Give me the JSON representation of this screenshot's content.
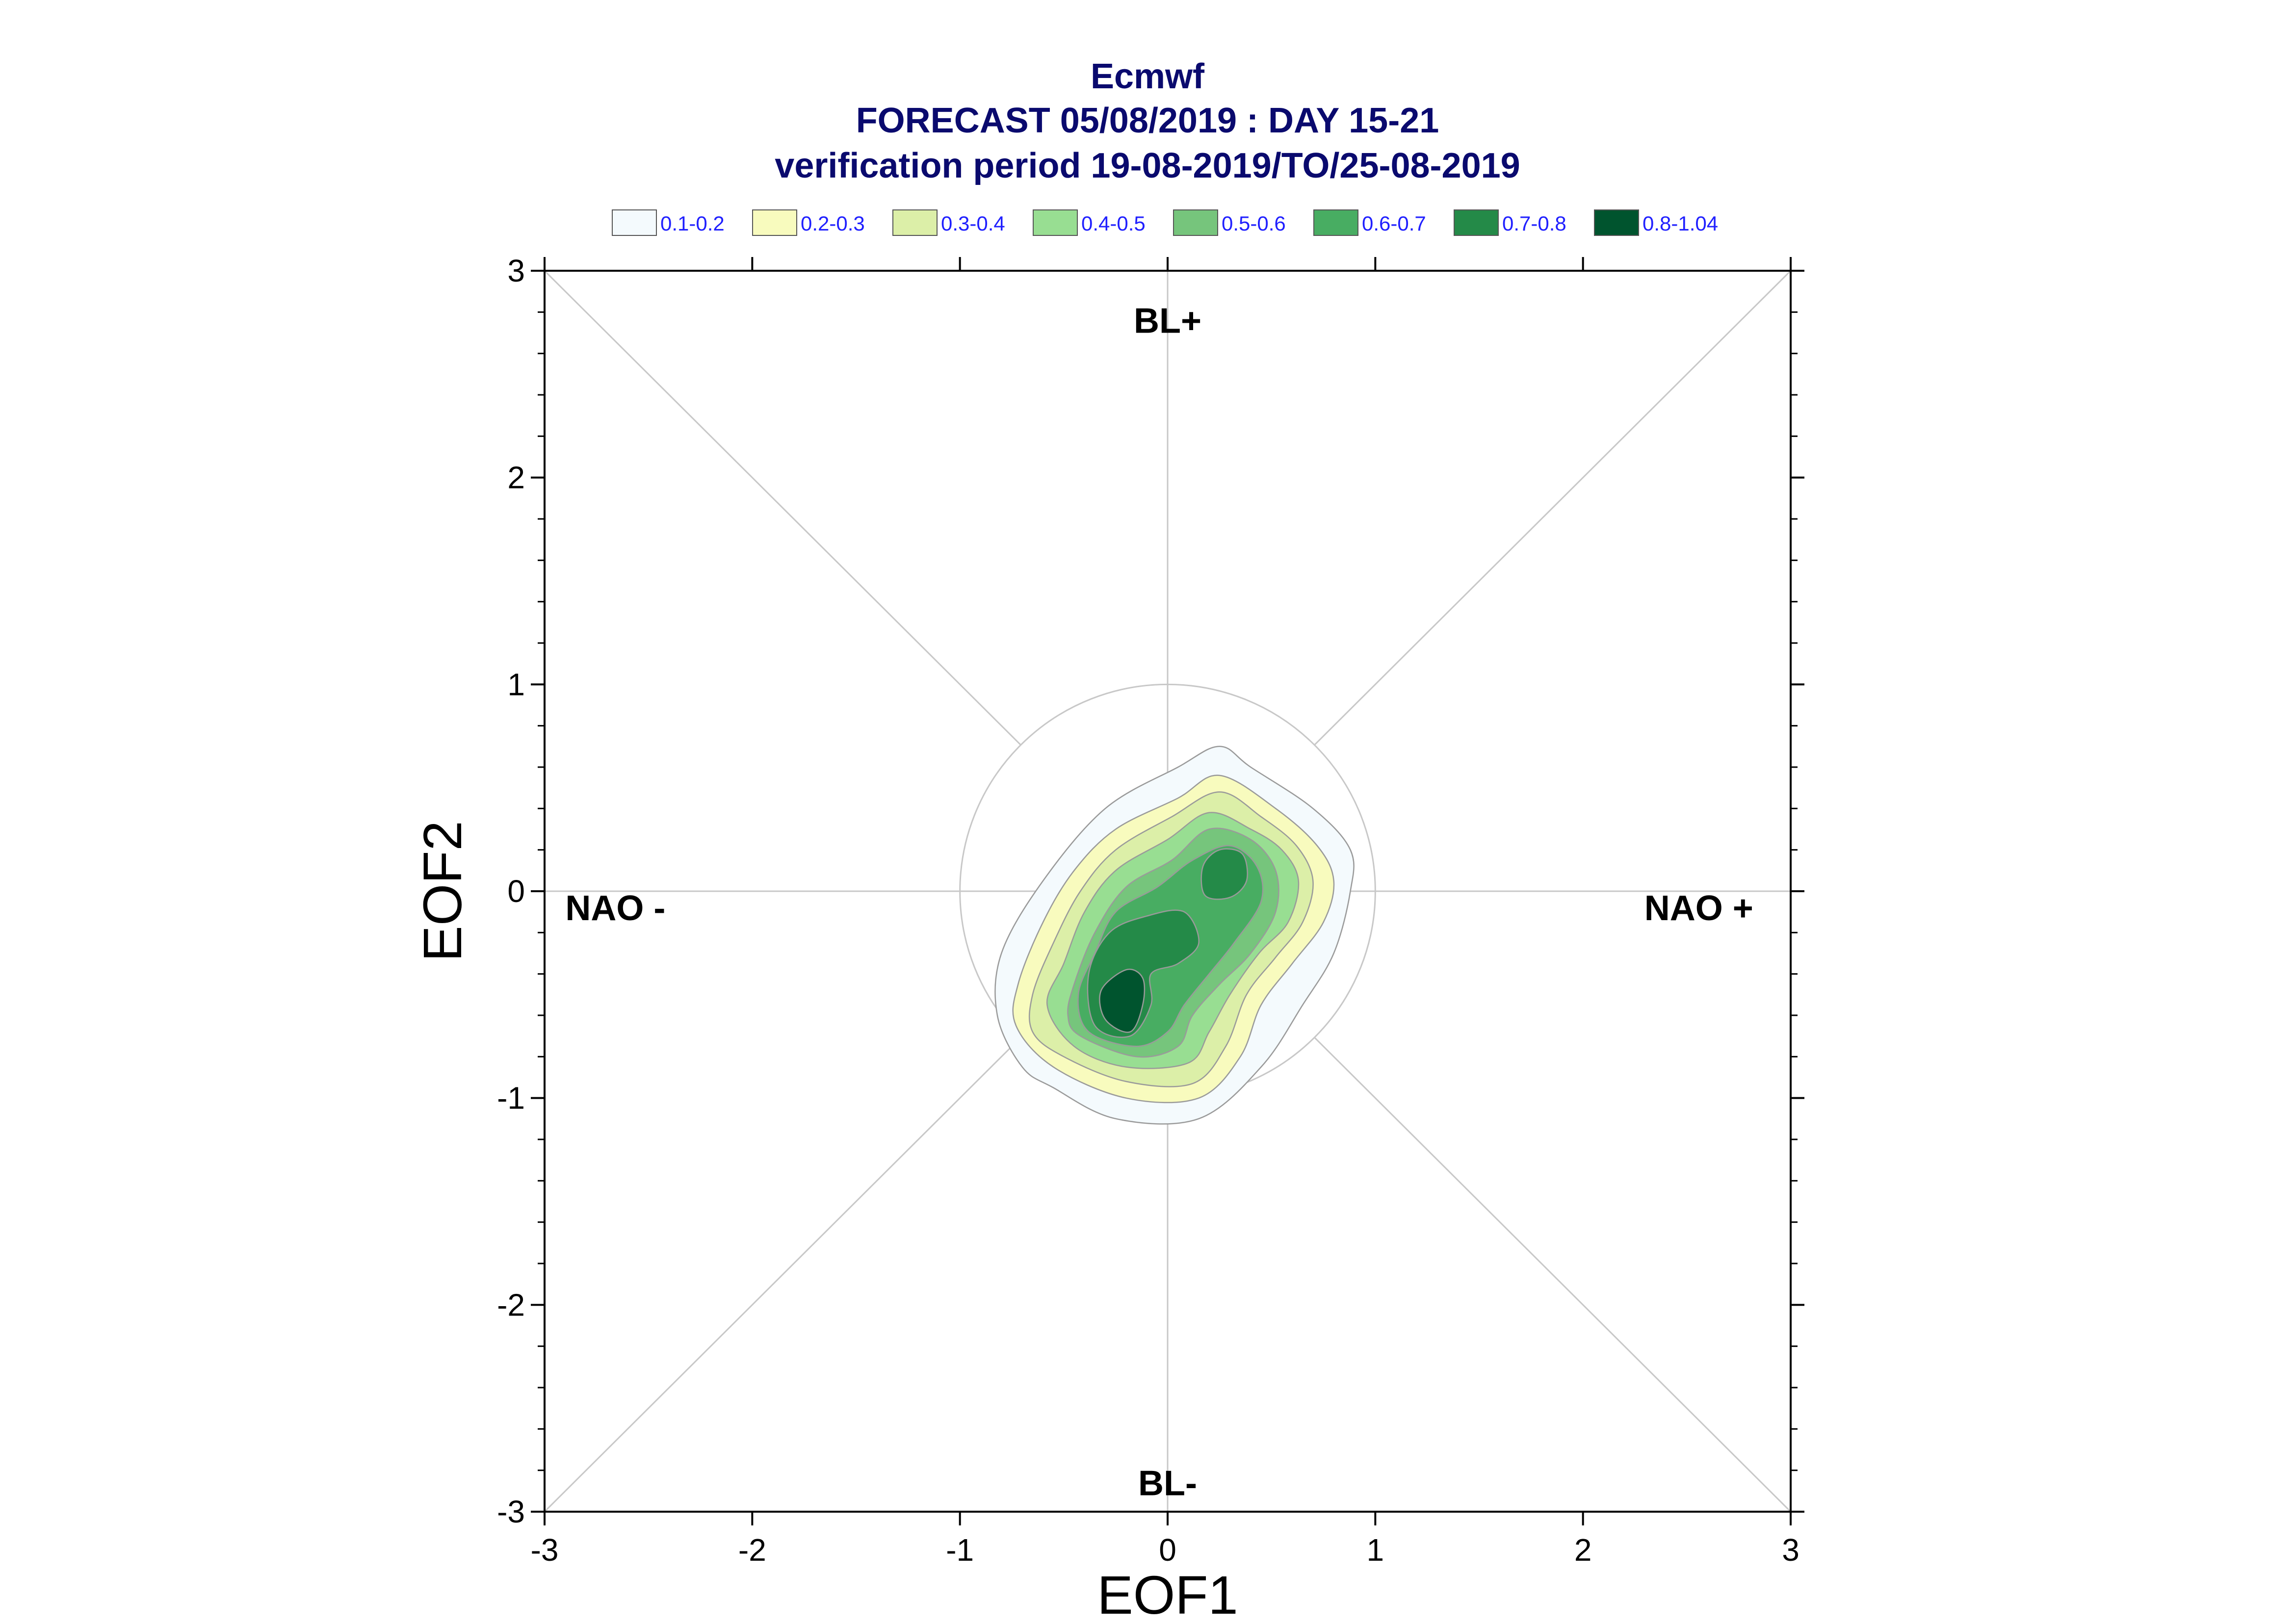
{
  "chart_data": {
    "type": "contour",
    "title": [
      "Ecmwf",
      "FORECAST 05/08/2019 : DAY 15-21",
      "verification period 19-08-2019/TO/25-08-2019"
    ],
    "xlabel": "EOF1",
    "ylabel": "EOF2",
    "xlim": [
      -3,
      3
    ],
    "ylim": [
      -3,
      3
    ],
    "xticks": [
      -3,
      -2,
      -1,
      0,
      1,
      2,
      3
    ],
    "yticks": [
      -3,
      -2,
      -1,
      0,
      1,
      2,
      3
    ],
    "xtick_labels": [
      "-3",
      "-2",
      "-1",
      "0",
      "1",
      "2",
      "3"
    ],
    "ytick_labels": [
      "-3",
      "-2",
      "-1",
      "0",
      "1",
      "2",
      "3"
    ],
    "grid": false,
    "legend_position": "top",
    "legend": [
      {
        "label": "0.1-0.2",
        "color": "#f4fafd"
      },
      {
        "label": "0.2-0.3",
        "color": "#f8fbbe"
      },
      {
        "label": "0.3-0.4",
        "color": "#dcefa8"
      },
      {
        "label": "0.4-0.5",
        "color": "#98de92"
      },
      {
        "label": "0.5-0.6",
        "color": "#76c57c"
      },
      {
        "label": "0.6-0.7",
        "color": "#48ad62"
      },
      {
        "label": "0.7-0.8",
        "color": "#248a48"
      },
      {
        "label": "0.8-1.04",
        "color": "#00542e"
      }
    ],
    "regime_labels": [
      {
        "label": "BL+",
        "position": "top"
      },
      {
        "label": "BL-",
        "position": "bottom"
      },
      {
        "label": "NAO -",
        "position": "left"
      },
      {
        "label": "NAO +",
        "position": "right"
      }
    ],
    "reference_circle_radius": 1.0,
    "contours": [
      {
        "level": "0.1-0.2",
        "color": "#f4fafd",
        "points": [
          [
            -0.55,
            -0.95
          ],
          [
            -0.25,
            -1.1
          ],
          [
            0.15,
            -1.1
          ],
          [
            0.45,
            -0.85
          ],
          [
            0.65,
            -0.55
          ],
          [
            0.8,
            -0.3
          ],
          [
            0.88,
            0.0
          ],
          [
            0.88,
            0.2
          ],
          [
            0.7,
            0.4
          ],
          [
            0.4,
            0.6
          ],
          [
            0.25,
            0.7
          ],
          [
            0.05,
            0.6
          ],
          [
            -0.3,
            0.4
          ],
          [
            -0.6,
            0.05
          ],
          [
            -0.8,
            -0.3
          ],
          [
            -0.82,
            -0.6
          ],
          [
            -0.7,
            -0.85
          ]
        ]
      },
      {
        "level": "0.2-0.3",
        "color": "#f8fbbe",
        "points": [
          [
            -0.55,
            -0.85
          ],
          [
            -0.2,
            -1.0
          ],
          [
            0.15,
            -1.0
          ],
          [
            0.35,
            -0.8
          ],
          [
            0.45,
            -0.55
          ],
          [
            0.6,
            -0.35
          ],
          [
            0.75,
            -0.15
          ],
          [
            0.8,
            0.05
          ],
          [
            0.72,
            0.22
          ],
          [
            0.52,
            0.4
          ],
          [
            0.25,
            0.56
          ],
          [
            0.05,
            0.45
          ],
          [
            -0.25,
            0.3
          ],
          [
            -0.45,
            0.1
          ],
          [
            -0.6,
            -0.15
          ],
          [
            -0.72,
            -0.45
          ],
          [
            -0.73,
            -0.65
          ]
        ]
      },
      {
        "level": "0.3-0.4",
        "color": "#dcefa8",
        "points": [
          [
            -0.5,
            -0.8
          ],
          [
            -0.2,
            -0.92
          ],
          [
            0.12,
            -0.93
          ],
          [
            0.28,
            -0.75
          ],
          [
            0.38,
            -0.5
          ],
          [
            0.52,
            -0.32
          ],
          [
            0.65,
            -0.15
          ],
          [
            0.7,
            0.05
          ],
          [
            0.62,
            0.22
          ],
          [
            0.45,
            0.36
          ],
          [
            0.25,
            0.48
          ],
          [
            0.02,
            0.36
          ],
          [
            -0.25,
            0.2
          ],
          [
            -0.42,
            0.0
          ],
          [
            -0.55,
            -0.25
          ],
          [
            -0.65,
            -0.5
          ],
          [
            -0.65,
            -0.68
          ]
        ]
      },
      {
        "level": "0.4-0.5",
        "color": "#98de92",
        "points": [
          [
            -0.45,
            -0.75
          ],
          [
            -0.2,
            -0.85
          ],
          [
            0.1,
            -0.83
          ],
          [
            0.2,
            -0.68
          ],
          [
            0.3,
            -0.5
          ],
          [
            0.44,
            -0.3
          ],
          [
            0.58,
            -0.15
          ],
          [
            0.63,
            0.05
          ],
          [
            0.55,
            0.2
          ],
          [
            0.4,
            0.3
          ],
          [
            0.2,
            0.38
          ],
          [
            0.0,
            0.25
          ],
          [
            -0.25,
            0.1
          ],
          [
            -0.4,
            -0.1
          ],
          [
            -0.5,
            -0.35
          ],
          [
            -0.58,
            -0.55
          ]
        ]
      },
      {
        "level": "0.5-0.6",
        "color": "#76c57c",
        "points": [
          [
            -0.42,
            -0.7
          ],
          [
            -0.15,
            -0.8
          ],
          [
            0.05,
            -0.75
          ],
          [
            0.12,
            -0.6
          ],
          [
            0.25,
            -0.45
          ],
          [
            0.4,
            -0.3
          ],
          [
            0.52,
            -0.1
          ],
          [
            0.52,
            0.1
          ],
          [
            0.4,
            0.25
          ],
          [
            0.2,
            0.3
          ],
          [
            0.02,
            0.15
          ],
          [
            -0.2,
            0.02
          ],
          [
            -0.35,
            -0.2
          ],
          [
            -0.45,
            -0.45
          ],
          [
            -0.48,
            -0.6
          ]
        ]
      },
      {
        "level": "0.6-0.7",
        "color": "#48ad62",
        "points": [
          [
            -0.38,
            -0.68
          ],
          [
            -0.15,
            -0.75
          ],
          [
            0.0,
            -0.68
          ],
          [
            0.08,
            -0.55
          ],
          [
            0.2,
            -0.4
          ],
          [
            0.32,
            -0.25
          ],
          [
            0.45,
            -0.05
          ],
          [
            0.43,
            0.12
          ],
          [
            0.3,
            0.22
          ],
          [
            0.12,
            0.15
          ],
          [
            -0.05,
            0.02
          ],
          [
            -0.25,
            -0.1
          ],
          [
            -0.35,
            -0.3
          ],
          [
            -0.43,
            -0.5
          ]
        ]
      },
      {
        "level": "0.7-0.8",
        "color": "#248a48",
        "points": [
          [
            -0.35,
            -0.65
          ],
          [
            -0.18,
            -0.7
          ],
          [
            -0.08,
            -0.55
          ],
          [
            -0.08,
            -0.4
          ],
          [
            0.05,
            -0.35
          ],
          [
            0.15,
            -0.25
          ],
          [
            0.08,
            -0.1
          ],
          [
            -0.1,
            -0.12
          ],
          [
            -0.28,
            -0.2
          ],
          [
            -0.38,
            -0.4
          ]
        ]
      },
      {
        "level": "0.7-0.8",
        "color": "#248a48",
        "points": [
          [
            0.18,
            -0.02
          ],
          [
            0.3,
            -0.03
          ],
          [
            0.38,
            0.05
          ],
          [
            0.36,
            0.18
          ],
          [
            0.25,
            0.2
          ],
          [
            0.17,
            0.12
          ]
        ]
      },
      {
        "level": "0.8-1.04",
        "color": "#00542e",
        "points": [
          [
            -0.3,
            -0.62
          ],
          [
            -0.18,
            -0.68
          ],
          [
            -0.12,
            -0.55
          ],
          [
            -0.12,
            -0.42
          ],
          [
            -0.2,
            -0.38
          ],
          [
            -0.32,
            -0.48
          ]
        ]
      }
    ]
  }
}
